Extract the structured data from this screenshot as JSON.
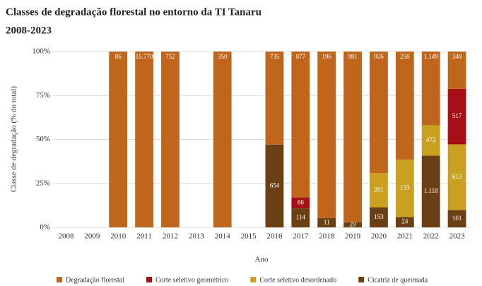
{
  "chart_data": {
    "type": "bar",
    "stacked": "percent",
    "title": "Classes de degradação florestal no entorno da TI Tanaru",
    "subtitle": "2008-2023",
    "x_label": "Ano",
    "y_label": "Classe de degradação (% do total)",
    "categories": [
      "2008",
      "2009",
      "2010",
      "2011",
      "2012",
      "2013",
      "2014",
      "2015",
      "2016",
      "2017",
      "2018",
      "2019",
      "2020",
      "2021",
      "2022",
      "2023"
    ],
    "series": [
      {
        "name": "Cicatriz de queimada",
        "color": "#6b3f14",
        "values": [
          null,
          null,
          null,
          null,
          null,
          null,
          null,
          null,
          654,
          114,
          11,
          29,
          153,
          24,
          1118,
          161
        ],
        "value_labels": [
          null,
          null,
          null,
          null,
          null,
          null,
          null,
          null,
          null,
          null,
          null,
          null,
          null,
          null,
          "1.118",
          null
        ]
      },
      {
        "name": "Corte seletivo desordenado",
        "color": "#c9a020",
        "values": [
          null,
          null,
          null,
          null,
          null,
          null,
          null,
          null,
          null,
          null,
          null,
          null,
          261,
          133,
          472,
          613
        ]
      },
      {
        "name": "Corte seletivo geométrico",
        "color": "#a80f14",
        "values": [
          null,
          null,
          null,
          null,
          null,
          null,
          null,
          null,
          null,
          66,
          null,
          null,
          null,
          null,
          null,
          517
        ]
      },
      {
        "name": "Degradação florestal",
        "color": "#c0661c",
        "values": [
          null,
          null,
          86,
          15770,
          752,
          null,
          350,
          null,
          735,
          877,
          196,
          981,
          926,
          250,
          1149,
          348
        ],
        "value_labels": [
          null,
          null,
          null,
          "15.770",
          null,
          null,
          null,
          null,
          null,
          null,
          null,
          null,
          null,
          null,
          "1.149",
          null
        ]
      }
    ],
    "legend_order": [
      3,
      2,
      1,
      0
    ],
    "ylim": [
      0,
      100
    ],
    "yticks": [
      {
        "value": 0,
        "label": "0%"
      },
      {
        "value": 25,
        "label": "25%"
      },
      {
        "value": 50,
        "label": "50%"
      },
      {
        "value": 75,
        "label": "75%"
      },
      {
        "value": 100,
        "label": "100%"
      }
    ],
    "grid": true,
    "legend": "bottom"
  }
}
